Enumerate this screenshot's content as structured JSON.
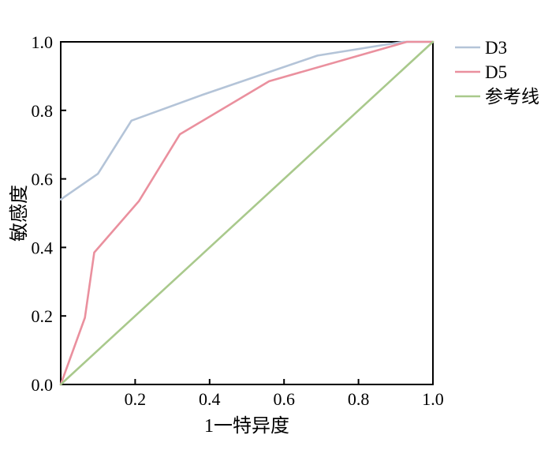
{
  "chart_data": {
    "type": "line",
    "title": "",
    "xlabel": "1一特异度",
    "ylabel": "敏感度",
    "xlim": [
      0.0,
      1.0
    ],
    "ylim": [
      0.0,
      1.0
    ],
    "xticks": [
      0.2,
      0.4,
      0.6,
      0.8,
      1.0
    ],
    "xtick_labels": [
      "0.2",
      "0.4",
      "0.6",
      "0.8",
      "1.0"
    ],
    "yticks": [
      0.0,
      0.2,
      0.4,
      0.6,
      0.8,
      1.0
    ],
    "ytick_labels": [
      "0.0",
      "0.2",
      "0.4",
      "0.6",
      "0.8",
      "1.0"
    ],
    "grid": false,
    "legend_position": "outside-top-right",
    "series": [
      {
        "name": "D3",
        "color": "#b4c4d8",
        "points": [
          [
            0.0,
            0.54
          ],
          [
            0.1,
            0.615
          ],
          [
            0.19,
            0.77
          ],
          [
            0.38,
            0.845
          ],
          [
            0.69,
            0.96
          ],
          [
            0.92,
            1.0
          ],
          [
            1.0,
            1.0
          ]
        ]
      },
      {
        "name": "D5",
        "color": "#ea909e",
        "points": [
          [
            0.0,
            0.0
          ],
          [
            0.065,
            0.195
          ],
          [
            0.09,
            0.385
          ],
          [
            0.21,
            0.535
          ],
          [
            0.32,
            0.73
          ],
          [
            0.56,
            0.885
          ],
          [
            0.93,
            1.0
          ],
          [
            1.0,
            1.0
          ]
        ]
      },
      {
        "name": "参考线",
        "color": "#a9c98c",
        "points": [
          [
            0.0,
            0.0
          ],
          [
            1.0,
            1.0
          ]
        ]
      }
    ]
  }
}
